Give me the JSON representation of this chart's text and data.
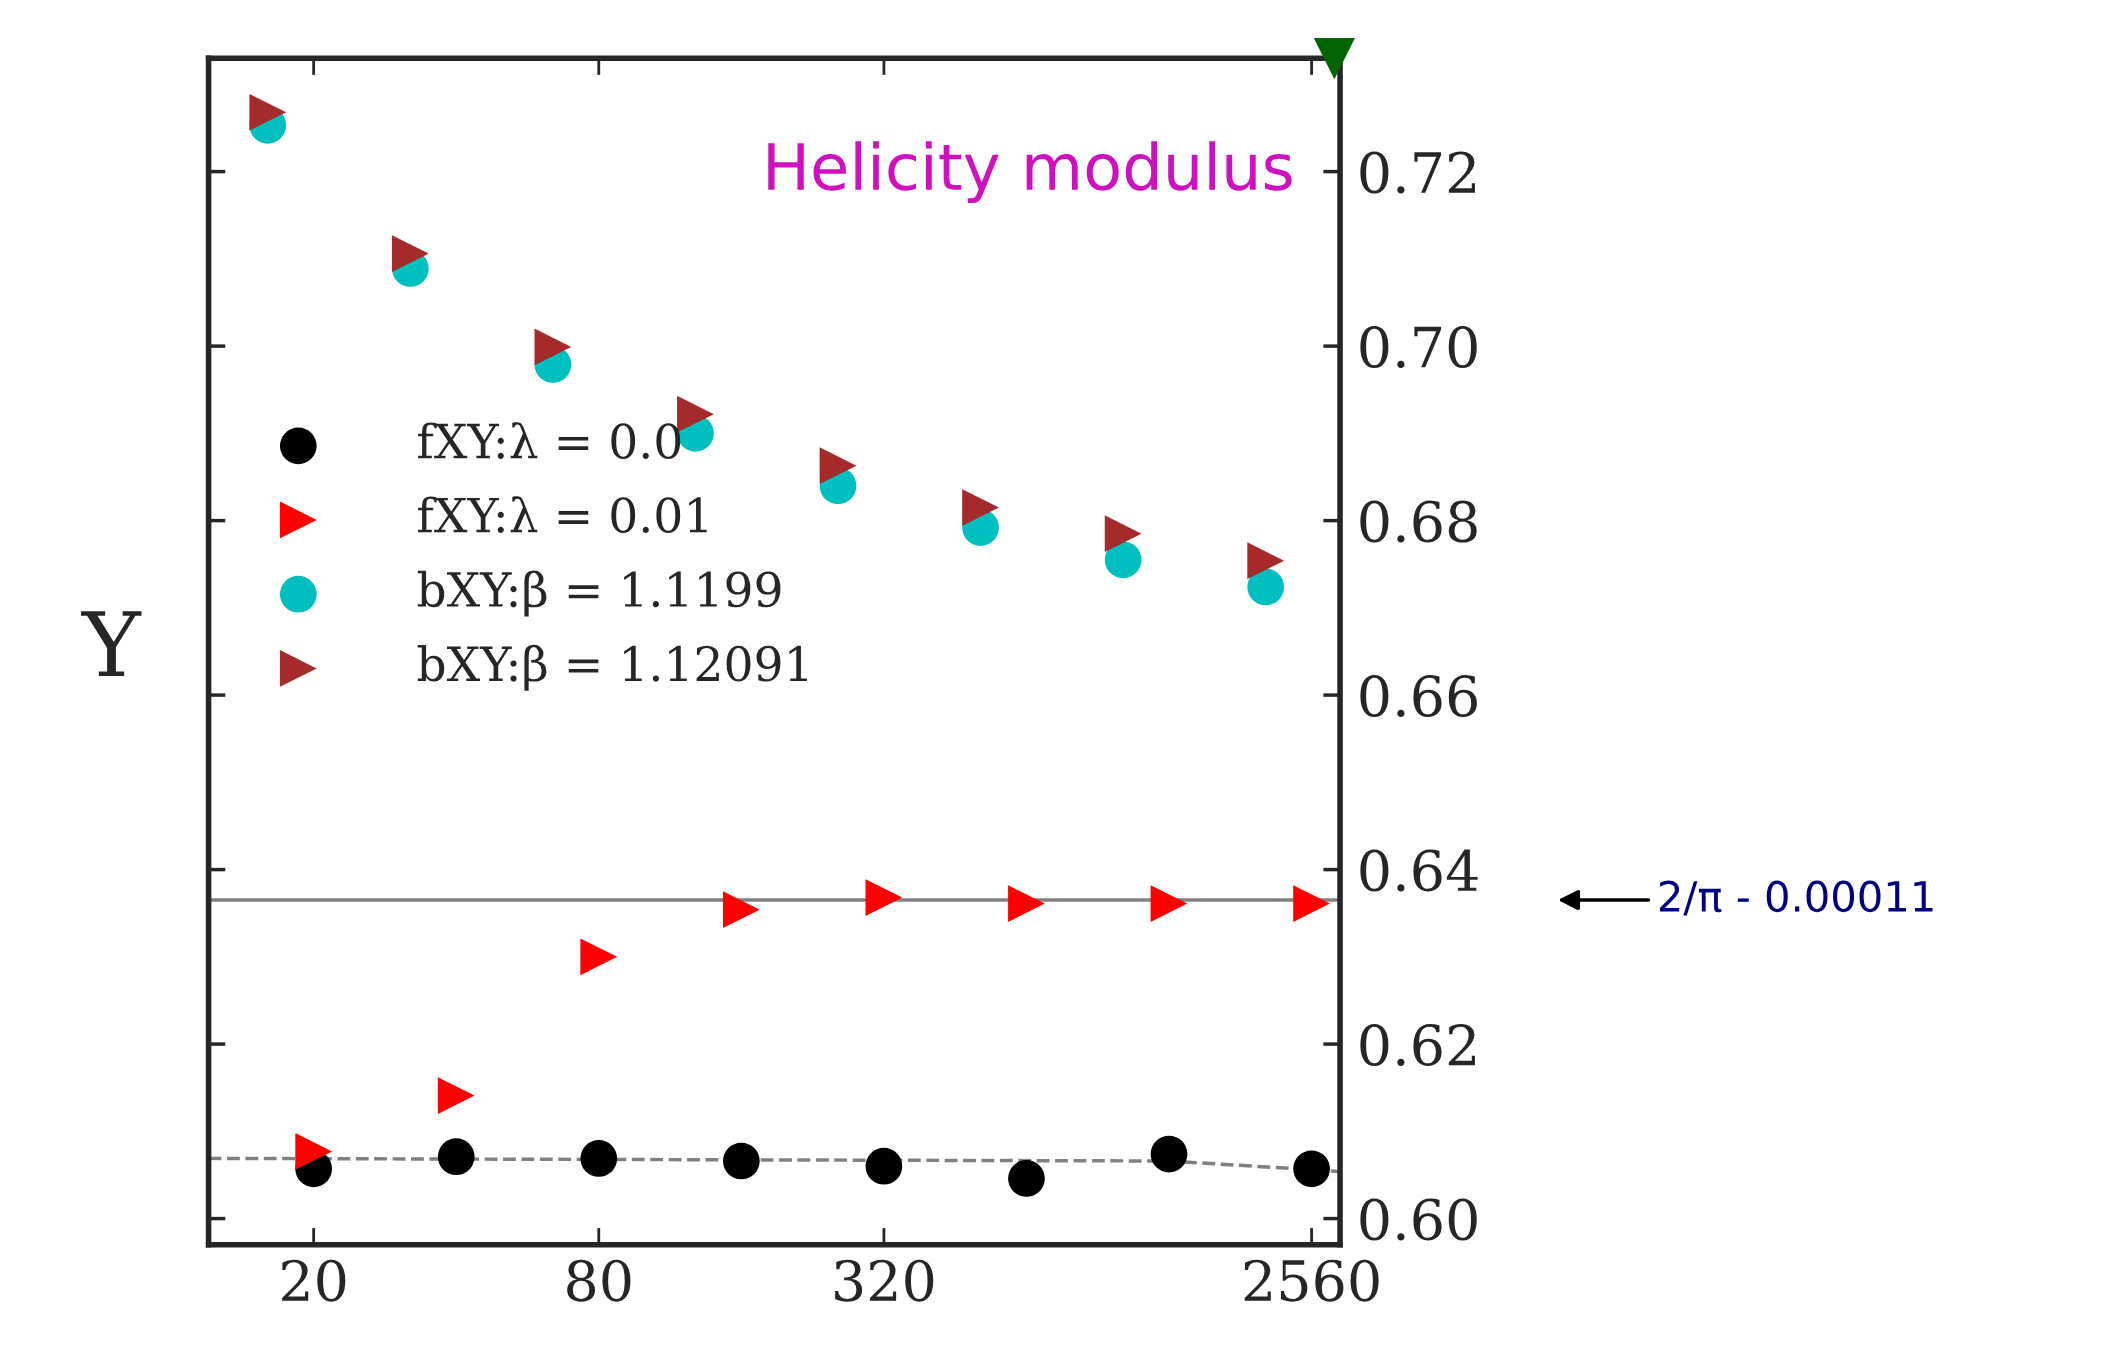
{
  "chart_data": {
    "type": "scatter",
    "title": "Helicity modulus",
    "ylabel": "Υ",
    "log": "x",
    "xlim": [
      12,
      2940
    ],
    "xticks": [
      20,
      80,
      320,
      2560
    ],
    "ylim": [
      0.597,
      0.733
    ],
    "yticks": [
      {
        "value": 0.6,
        "label": "0.60"
      },
      0.62,
      0.64,
      0.66,
      0.68,
      {
        "value": 0.7,
        "label": "0.70"
      },
      0.72
    ],
    "legend": "left",
    "grid": false,
    "series": [
      {
        "name": "fXY:λ = 0.0",
        "color": "#000000",
        "marker": "circle",
        "x": [
          20,
          40,
          80,
          160,
          320,
          640,
          1280,
          2560
        ],
        "values": [
          0.6057,
          0.6071,
          0.6069,
          0.6066,
          0.606,
          0.6046,
          0.6074,
          0.6057
        ]
      },
      {
        "name": "fXY:λ = 0.01",
        "color": "#ff0000",
        "marker": "triangle",
        "x": [
          20,
          40,
          80,
          160,
          320,
          640,
          1280,
          2560
        ],
        "values": [
          0.6077,
          0.6141,
          0.63,
          0.6354,
          0.6368,
          0.6361,
          0.6361,
          0.6361
        ]
      },
      {
        "name": "bXY:β = 1.1199",
        "color": "#00bfbf",
        "marker": "circle",
        "x": [
          16,
          32,
          64,
          128,
          256,
          512,
          1024,
          2048
        ],
        "values": [
          0.7253,
          0.7089,
          0.6979,
          0.69,
          0.684,
          0.6792,
          0.6755,
          0.6724
        ]
      },
      {
        "name": "bXY:β = 1.12091",
        "color": "#a52a2a",
        "marker": "triangle",
        "x": [
          16,
          32,
          64,
          128,
          256,
          512,
          1024,
          2048
        ],
        "values": [
          0.7268,
          0.7106,
          0.6999,
          0.6922,
          0.6863,
          0.6815,
          0.6785,
          0.6754
        ]
      },
      {
        "type": "line",
        "color": "#808080",
        "line_style": "dashed",
        "marker": "none",
        "x": [
          12,
          1280,
          2940
        ],
        "values": [
          0.6069,
          0.6066,
          0.6054
        ]
      }
    ],
    "ref_lines": [
      {
        "axis": "y",
        "value": 0.63651,
        "color": "#808080"
      }
    ],
    "annotations": [
      "2/π - 0.00011"
    ]
  }
}
